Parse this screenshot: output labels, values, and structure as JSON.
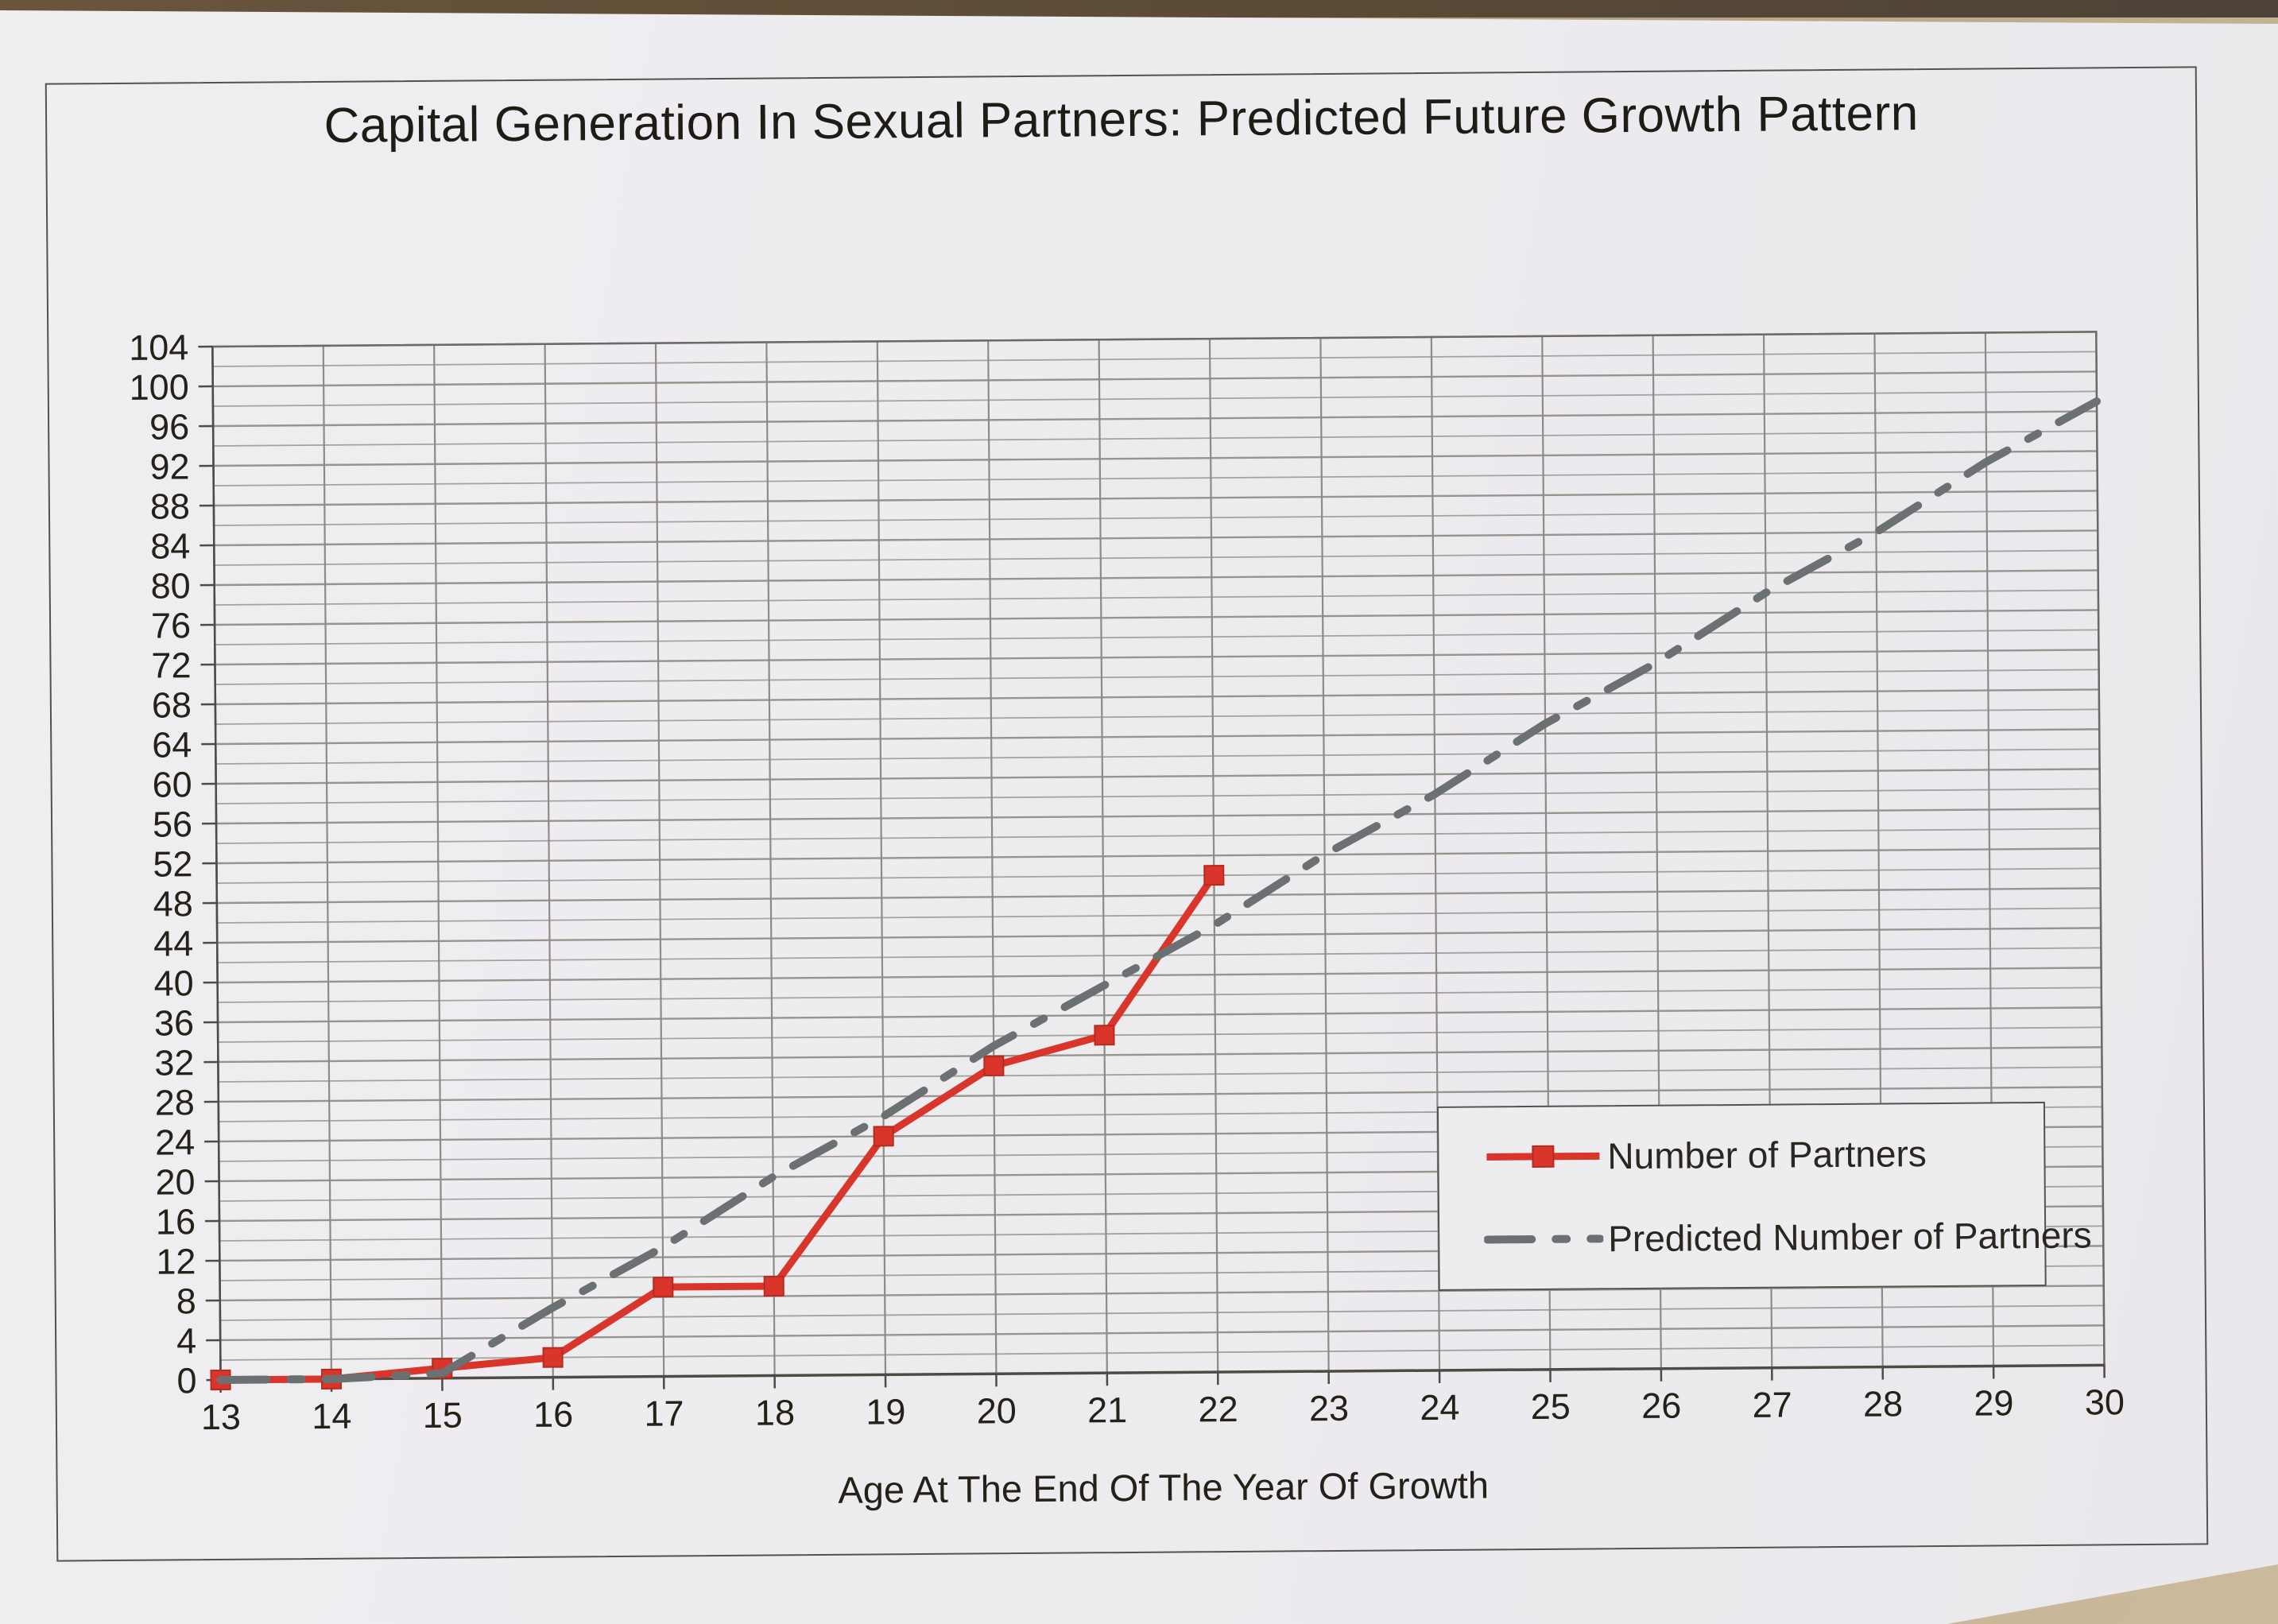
{
  "scene": {
    "description": "Photograph of a printed line chart on white paper lying on a tan desk",
    "desk_color": "#b3a284",
    "top_strip_color": "#5a4a36",
    "paper_color": "#edecef"
  },
  "chart_data": {
    "type": "line",
    "title": "Capital Generation In Sexual Partners: Predicted Future Growth Pattern",
    "xlabel": "Age At The End Of The Year Of Growth",
    "ylabel": "",
    "xlim": [
      13,
      30
    ],
    "ylim": [
      0,
      104
    ],
    "x_ticks": [
      13,
      14,
      15,
      16,
      17,
      18,
      19,
      20,
      21,
      22,
      23,
      24,
      25,
      26,
      27,
      28,
      29,
      30
    ],
    "y_tick_step": 4,
    "y_minor_gridline_step": 2,
    "grid": true,
    "legend_position": "center-right",
    "series": [
      {
        "name": "Number of Partners",
        "color": "#da352a",
        "marker": "square",
        "line_style": "solid",
        "x": [
          13,
          14,
          15,
          16,
          17,
          18,
          19,
          20,
          21,
          22
        ],
        "values": [
          0,
          0,
          1,
          2,
          9,
          9,
          24,
          31,
          34,
          50
        ]
      },
      {
        "name": "Predicted Number of Partners",
        "color": "#6b7072",
        "marker": "none",
        "line_style": "dash-dot",
        "x": [
          13,
          14,
          15,
          16,
          17,
          18,
          19,
          20,
          21,
          22,
          23,
          24,
          25,
          26,
          27,
          28,
          29,
          30
        ],
        "values": [
          0,
          0,
          0.5,
          7,
          13,
          20,
          26,
          33,
          39,
          45,
          52,
          58,
          65,
          71,
          78,
          84,
          91,
          97
        ]
      }
    ]
  }
}
